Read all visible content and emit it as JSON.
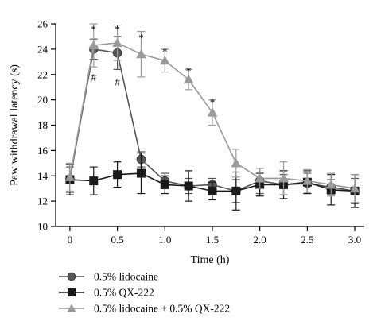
{
  "chart_data": {
    "type": "line",
    "title": "",
    "xlabel": "Time (h)",
    "ylabel": "Paw withdrawal latency (s)",
    "xlim": [
      -0.15,
      3.1
    ],
    "ylim": [
      10,
      26
    ],
    "xticks": [
      0,
      0.5,
      1.0,
      1.5,
      2.0,
      2.5,
      3.0
    ],
    "xtick_labels": [
      "0",
      "0.5",
      "1.0",
      "1.5",
      "2.0",
      "2.5",
      "3.0"
    ],
    "yticks": [
      10,
      12,
      14,
      16,
      18,
      20,
      22,
      24,
      26
    ],
    "ytick_labels": [
      "10",
      "12",
      "14",
      "16",
      "18",
      "20",
      "22",
      "24",
      "26"
    ],
    "grid": false,
    "legend_position": "bottom-left",
    "x": [
      0,
      0.25,
      0.5,
      0.75,
      1.0,
      1.25,
      1.5,
      1.75,
      2.0,
      2.25,
      2.5,
      2.75,
      3.0
    ],
    "series": [
      {
        "name": "0.5% lidocaine",
        "marker": "circle",
        "color": "#555555",
        "values": [
          13.7,
          24.0,
          23.7,
          15.3,
          13.6,
          13.2,
          13.3,
          12.8,
          13.6,
          13.3,
          13.4,
          13.1,
          12.8
        ],
        "errors": [
          1.0,
          0.8,
          1.3,
          0.6,
          0.6,
          0.6,
          0.5,
          0.9,
          1.0,
          0.8,
          0.8,
          0.6,
          1.0
        ]
      },
      {
        "name": "0.5% QX-222",
        "marker": "square",
        "color": "#1a1a1a",
        "values": [
          13.7,
          13.6,
          14.1,
          14.2,
          13.3,
          13.2,
          12.8,
          12.8,
          13.3,
          13.3,
          13.5,
          12.9,
          12.8
        ],
        "errors": [
          1.2,
          1.1,
          1.0,
          1.6,
          0.7,
          1.2,
          0.7,
          1.5,
          0.9,
          1.1,
          0.9,
          1.2,
          1.3
        ]
      },
      {
        "name": "0.5% lidocaine + 0.5% QX-222",
        "marker": "triangle",
        "color": "#9a9a9a",
        "values": [
          13.9,
          24.3,
          24.5,
          23.6,
          23.1,
          21.6,
          19.0,
          15.0,
          13.8,
          13.8,
          13.6,
          13.3,
          13.0
        ],
        "errors": [
          1.1,
          1.7,
          1.4,
          1.8,
          0.9,
          0.8,
          1.0,
          1.1,
          0.8,
          1.3,
          0.9,
          0.9,
          1.1
        ]
      }
    ],
    "annotations": [
      {
        "text": "*",
        "x": 0.25,
        "y": 25.7
      },
      {
        "text": "*",
        "x": 0.5,
        "y": 25.7
      },
      {
        "text": "*",
        "x": 0.75,
        "y": 25.0
      },
      {
        "text": "*",
        "x": 1.0,
        "y": 23.9
      },
      {
        "text": "*",
        "x": 1.25,
        "y": 22.4
      },
      {
        "text": "*",
        "x": 1.5,
        "y": 19.9
      },
      {
        "text": "#",
        "x": 0.25,
        "y": 21.9
      },
      {
        "text": "#",
        "x": 0.5,
        "y": 21.5
      }
    ]
  }
}
